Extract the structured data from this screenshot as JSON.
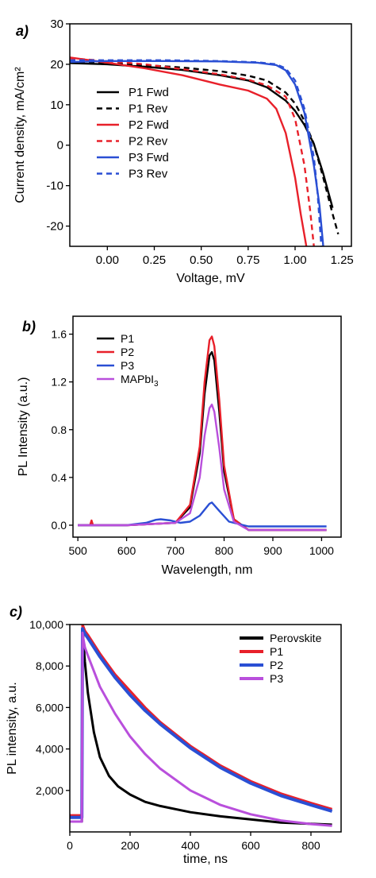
{
  "colors": {
    "black": "#000000",
    "red": "#e8202a",
    "blue": "#2a4fd4",
    "violet": "#b94fdc"
  },
  "chart_data": [
    {
      "panel": "a)",
      "type": "line",
      "xlabel": "Voltage, mV",
      "ylabel": "Current density, mA/cm²",
      "xlim": [
        -0.2,
        1.3
      ],
      "ylim": [
        -25,
        30
      ],
      "xticks": [
        0.0,
        0.25,
        0.5,
        0.75,
        1.0,
        1.25
      ],
      "xtick_labels": [
        "0.00",
        "0.25",
        "0.50",
        "0.75",
        "1.00",
        "1.25"
      ],
      "yticks": [
        -20,
        -10,
        0,
        10,
        20,
        30
      ],
      "ytick_labels": [
        "-20",
        "-10",
        "0",
        "10",
        "20",
        "30"
      ],
      "legend_position": "left",
      "series": [
        {
          "name": "P1 Fwd",
          "color": "#000000",
          "dash": "solid",
          "x": [
            -0.2,
            0,
            0.2,
            0.4,
            0.6,
            0.75,
            0.85,
            0.95,
            1.0,
            1.05,
            1.1,
            1.15,
            1.2
          ],
          "y": [
            20.3,
            20.0,
            19.4,
            18.6,
            17.3,
            16.0,
            14.3,
            11.0,
            8.5,
            5.0,
            0.3,
            -7,
            -15.5
          ]
        },
        {
          "name": "P1 Rev",
          "color": "#000000",
          "dash": "dashed",
          "x": [
            -0.2,
            0,
            0.2,
            0.4,
            0.6,
            0.75,
            0.85,
            0.95,
            1.0,
            1.05,
            1.1,
            1.15,
            1.2,
            1.23
          ],
          "y": [
            20.6,
            20.2,
            19.8,
            19.2,
            18.3,
            17.2,
            16.0,
            13.0,
            10.3,
            6.0,
            0.3,
            -8,
            -17,
            -22
          ]
        },
        {
          "name": "P2 Fwd",
          "color": "#e8202a",
          "dash": "solid",
          "x": [
            -0.2,
            0,
            0.2,
            0.4,
            0.6,
            0.75,
            0.85,
            0.9,
            0.95,
            1.0,
            1.03,
            1.06
          ],
          "y": [
            21.7,
            20.4,
            19.0,
            17.3,
            15.0,
            13.5,
            11.5,
            9.0,
            3.0,
            -8,
            -17,
            -25
          ]
        },
        {
          "name": "P2 Rev",
          "color": "#e8202a",
          "dash": "dashed",
          "x": [
            -0.2,
            0,
            0.2,
            0.4,
            0.6,
            0.75,
            0.85,
            0.95,
            1.0,
            1.05,
            1.08,
            1.1
          ],
          "y": [
            21.5,
            20.8,
            20.0,
            18.8,
            17.5,
            16.2,
            14.8,
            12.0,
            6.5,
            -5,
            -16,
            -25
          ]
        },
        {
          "name": "P3 Fwd",
          "color": "#2a4fd4",
          "dash": "solid",
          "x": [
            -0.2,
            0,
            0.3,
            0.6,
            0.8,
            0.9,
            0.95,
            1.0,
            1.05,
            1.1,
            1.13,
            1.15
          ],
          "y": [
            20.6,
            20.8,
            20.8,
            20.7,
            20.4,
            19.8,
            18.5,
            15.0,
            8.0,
            -5,
            -15,
            -25
          ]
        },
        {
          "name": "P3 Rev",
          "color": "#2a4fd4",
          "dash": "dashed",
          "x": [
            -0.2,
            0,
            0.3,
            0.6,
            0.8,
            0.9,
            0.95,
            1.0,
            1.05,
            1.1,
            1.12,
            1.14
          ],
          "y": [
            21.0,
            21.0,
            21.0,
            20.8,
            20.5,
            20.0,
            19.0,
            16.0,
            9.0,
            -3,
            -12,
            -25
          ]
        }
      ]
    },
    {
      "panel": "b)",
      "type": "line",
      "xlabel": "Wavelength, nm",
      "ylabel": "PL Intensity (a.u.)",
      "xlim": [
        490,
        1040
      ],
      "ylim": [
        -0.1,
        1.75
      ],
      "xticks": [
        500,
        600,
        700,
        800,
        900,
        1000
      ],
      "xtick_labels": [
        "500",
        "600",
        "700",
        "800",
        "900",
        "1000"
      ],
      "yticks": [
        0.0,
        0.4,
        0.8,
        1.2,
        1.6
      ],
      "ytick_labels": [
        "0.0",
        "0.4",
        "0.8",
        "1.2",
        "1.6"
      ],
      "legend_position": "top-left",
      "series": [
        {
          "name": "P1",
          "color": "#000000",
          "x": [
            500,
            600,
            650,
            700,
            730,
            750,
            760,
            770,
            775,
            780,
            790,
            800,
            820,
            850,
            900,
            1010
          ],
          "y": [
            0,
            0,
            0.01,
            0.02,
            0.15,
            0.6,
            1.1,
            1.42,
            1.45,
            1.38,
            0.95,
            0.45,
            0.05,
            -0.04,
            -0.04,
            -0.04
          ]
        },
        {
          "name": "P2",
          "color": "#e8202a",
          "x": [
            500,
            525,
            528,
            531,
            534,
            600,
            650,
            700,
            730,
            750,
            760,
            770,
            775,
            780,
            790,
            800,
            820,
            850,
            900,
            1010
          ],
          "y": [
            0,
            0,
            0.04,
            0,
            0,
            0,
            0.01,
            0.02,
            0.17,
            0.66,
            1.2,
            1.55,
            1.58,
            1.5,
            1.05,
            0.5,
            0.05,
            -0.04,
            -0.04,
            -0.04
          ]
        },
        {
          "name": "P3",
          "color": "#2a4fd4",
          "x": [
            500,
            600,
            640,
            660,
            670,
            690,
            710,
            730,
            750,
            770,
            775,
            790,
            810,
            850,
            900,
            1010
          ],
          "y": [
            0,
            0,
            0.02,
            0.045,
            0.05,
            0.04,
            0.02,
            0.03,
            0.08,
            0.18,
            0.19,
            0.12,
            0.03,
            -0.01,
            -0.01,
            -0.01
          ]
        },
        {
          "name": "MAPbI",
          "name_sub": "3",
          "color": "#b94fdc",
          "x": [
            500,
            600,
            650,
            700,
            730,
            750,
            760,
            770,
            775,
            780,
            790,
            800,
            820,
            850,
            900,
            1010
          ],
          "y": [
            0,
            0,
            0.01,
            0.02,
            0.1,
            0.4,
            0.75,
            0.98,
            1.01,
            0.95,
            0.65,
            0.3,
            0.03,
            -0.04,
            -0.04,
            -0.04
          ]
        }
      ]
    },
    {
      "panel": "c)",
      "type": "line",
      "xlabel": "time, ns",
      "ylabel": "PL intensity, a.u.",
      "xlim": [
        0,
        900
      ],
      "ylim": [
        0,
        10000
      ],
      "xticks": [
        0,
        200,
        400,
        600,
        800
      ],
      "xtick_labels": [
        "0",
        "200",
        "400",
        "600",
        "800"
      ],
      "yticks": [
        2000,
        4000,
        6000,
        8000,
        10000
      ],
      "ytick_labels": [
        "2,000",
        "4,000",
        "6,000",
        "8,000",
        "10,000"
      ],
      "legend_position": "top-right",
      "series": [
        {
          "name": "Perovskite",
          "color": "#000000",
          "x": [
            0,
            40,
            42,
            45,
            50,
            60,
            80,
            100,
            130,
            160,
            200,
            250,
            300,
            400,
            500,
            600,
            700,
            870
          ],
          "y": [
            500,
            500,
            10000,
            9200,
            8200,
            6700,
            4800,
            3600,
            2700,
            2200,
            1800,
            1450,
            1250,
            950,
            750,
            600,
            450,
            350
          ]
        },
        {
          "name": "P1",
          "color": "#e8202a",
          "x": [
            0,
            40,
            42,
            45,
            50,
            60,
            100,
            150,
            200,
            250,
            300,
            400,
            500,
            600,
            700,
            800,
            870
          ],
          "y": [
            800,
            800,
            10000,
            9900,
            9700,
            9500,
            8600,
            7600,
            6800,
            6000,
            5300,
            4150,
            3200,
            2450,
            1850,
            1400,
            1100
          ]
        },
        {
          "name": "P2",
          "color": "#2a4fd4",
          "x": [
            0,
            40,
            42,
            45,
            50,
            60,
            100,
            150,
            200,
            250,
            300,
            400,
            500,
            600,
            700,
            800,
            870
          ],
          "y": [
            700,
            700,
            9800,
            9700,
            9550,
            9350,
            8450,
            7450,
            6600,
            5850,
            5200,
            4050,
            3100,
            2350,
            1750,
            1300,
            1000
          ]
        },
        {
          "name": "P3",
          "color": "#b94fdc",
          "x": [
            0,
            40,
            42,
            45,
            50,
            60,
            100,
            150,
            200,
            250,
            300,
            400,
            500,
            600,
            700,
            800,
            870
          ],
          "y": [
            500,
            500,
            9600,
            9300,
            8900,
            8500,
            7000,
            5700,
            4600,
            3750,
            3050,
            2000,
            1300,
            850,
            550,
            380,
            300
          ]
        }
      ]
    }
  ]
}
